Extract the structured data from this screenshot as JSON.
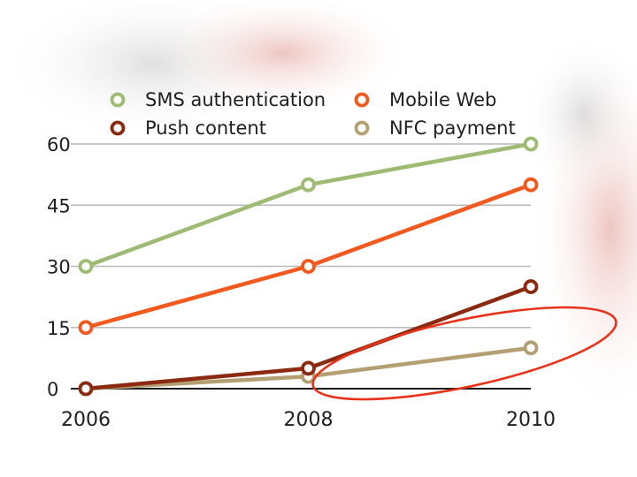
{
  "chart_data": {
    "type": "line",
    "x": [
      "2006",
      "2008",
      "2010"
    ],
    "ylim": [
      0,
      60
    ],
    "yticks": [
      0,
      15,
      30,
      45,
      60
    ],
    "grid": true,
    "legend_position": "top",
    "series": [
      {
        "name": "SMS authentication",
        "color": "#9dbb72",
        "values": [
          30,
          50,
          60
        ]
      },
      {
        "name": "Mobile Web",
        "color": "#f15a1e",
        "values": [
          15,
          30,
          50
        ]
      },
      {
        "name": "Push content",
        "color": "#8b2a10",
        "values": [
          0,
          5,
          25
        ]
      },
      {
        "name": "NFC payment",
        "color": "#b39f72",
        "values": [
          0,
          3,
          10
        ]
      }
    ],
    "annotation": {
      "shape": "ellipse",
      "color": "#e8331a",
      "highlights": [
        "Push content",
        "NFC payment"
      ],
      "x_range": [
        "2008",
        "2010"
      ]
    }
  }
}
